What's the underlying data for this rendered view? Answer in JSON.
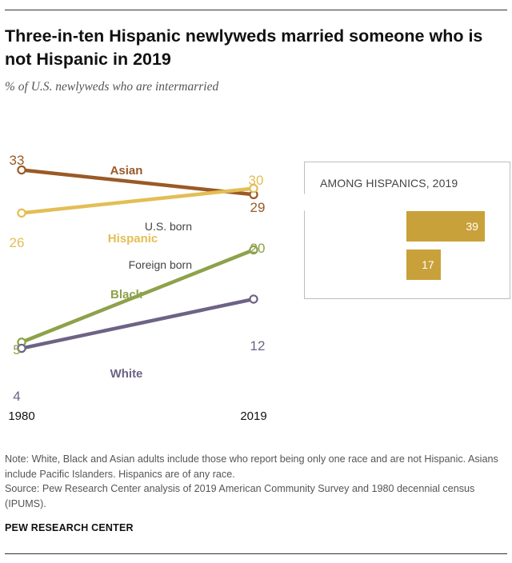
{
  "title": "Three-in-ten Hispanic newlyweds married someone who is not Hispanic in 2019",
  "subtitle": "% of U.S. newlyweds who are intermarried",
  "chart_data": {
    "type": "line",
    "x": [
      "1980",
      "2019"
    ],
    "series": [
      {
        "name": "Asian",
        "values": [
          33,
          29
        ],
        "color": "#9a5a26"
      },
      {
        "name": "Hispanic",
        "values": [
          26,
          30
        ],
        "color": "#e3be56"
      },
      {
        "name": "Black",
        "values": [
          5,
          20
        ],
        "color": "#8da24a"
      },
      {
        "name": "White",
        "values": [
          4,
          12
        ],
        "color": "#6d6385"
      }
    ],
    "value_labels": [
      {
        "series": "Asian",
        "start": "33",
        "end": "29"
      },
      {
        "series": "Hispanic",
        "start": "26",
        "end": "30"
      },
      {
        "series": "Black",
        "start": "5",
        "end": "20"
      },
      {
        "series": "White",
        "start": "4",
        "end": "12"
      }
    ],
    "grid": false,
    "legend": "direct labels on lines"
  },
  "callout": {
    "title": "AMONG HISPANICS, 2019",
    "bars": [
      {
        "label": "U.S. born",
        "value": 39
      },
      {
        "label": "Foreign born",
        "value": 17
      }
    ],
    "color": "#c9a13a",
    "max": 45
  },
  "notes": {
    "note": "Note: White, Black and Asian adults include those who report being only one race and are not Hispanic. Asians include Pacific Islanders. Hispanics are of any race.",
    "source": "Source: Pew Research Center analysis of 2019 American Community Survey and 1980 decennial census (IPUMS)."
  },
  "brand": "PEW RESEARCH CENTER"
}
